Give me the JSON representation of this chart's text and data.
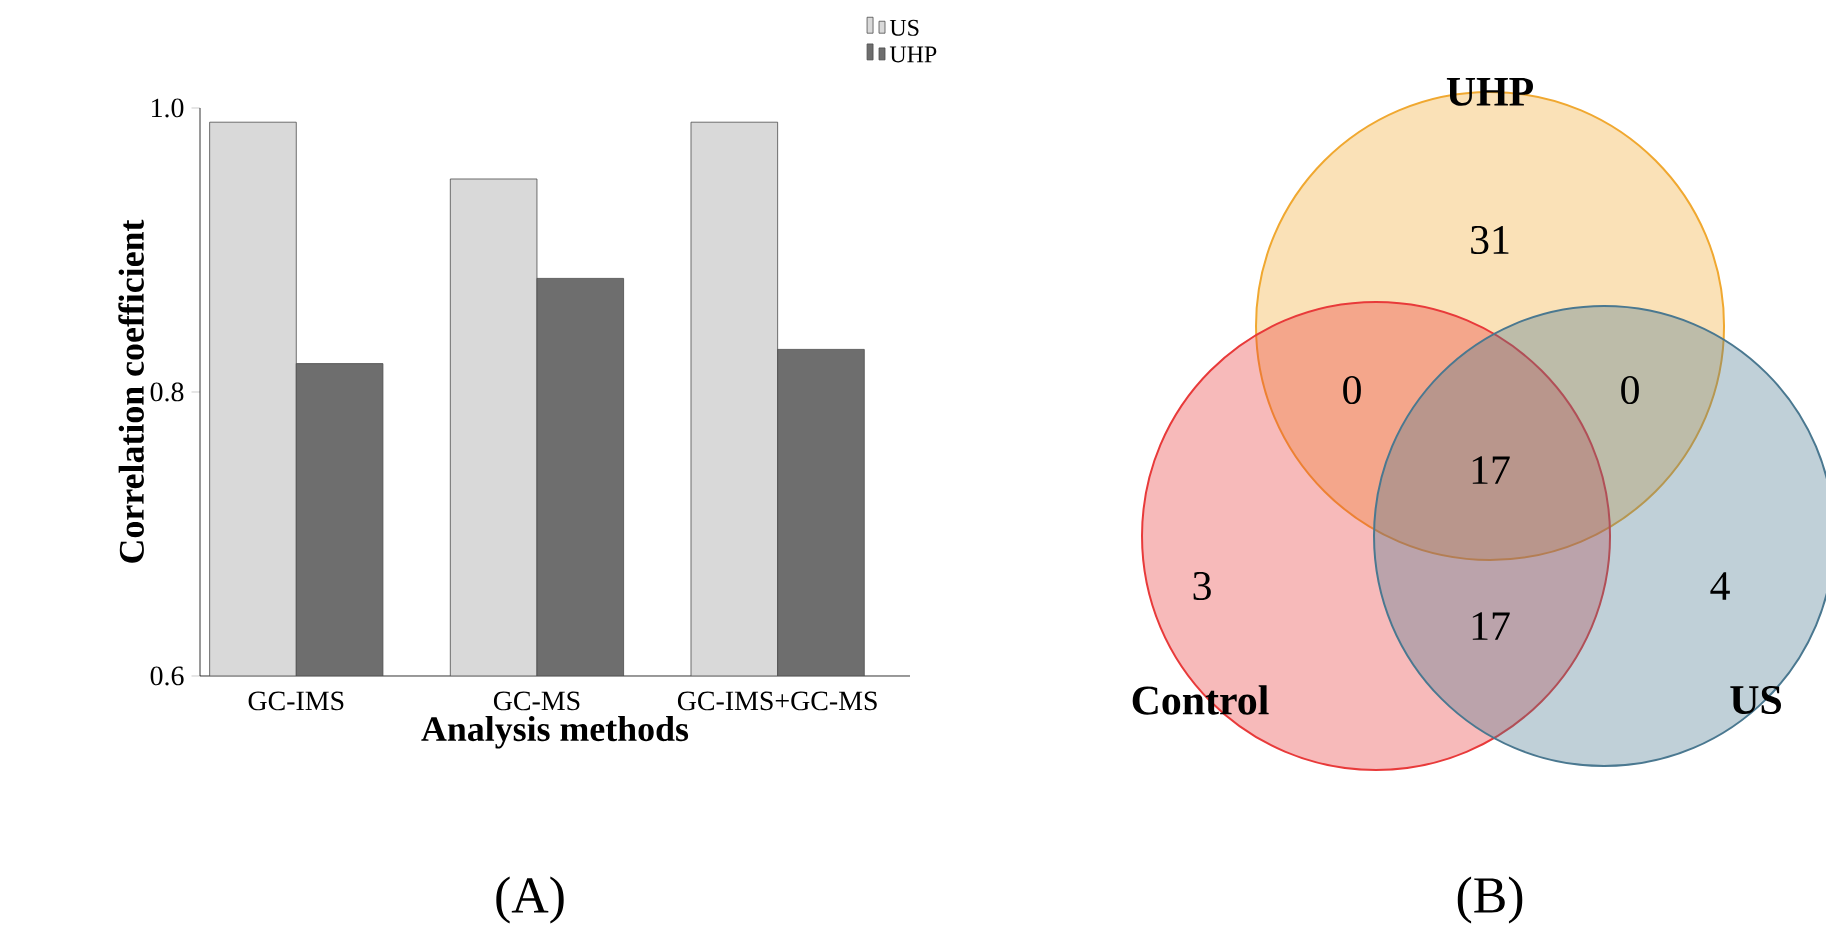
{
  "chart_data": [
    {
      "type": "bar",
      "xlabel": "Analysis methods",
      "ylabel": "Correlation coefficient",
      "categories": [
        "GC-IMS",
        "GC-MS",
        "GC-IMS+GC-MS"
      ],
      "series": [
        {
          "name": "US",
          "color": "#d9d9d9",
          "values": [
            0.99,
            0.95,
            0.99
          ]
        },
        {
          "name": "UHP",
          "color": "#6e6e6e",
          "values": [
            0.82,
            0.88,
            0.83
          ]
        }
      ],
      "ylim": [
        0.6,
        1.0
      ],
      "yticks": [
        0.6,
        0.8,
        {
          "value": 1.0,
          "label": "1.0"
        }
      ],
      "legend": "top right",
      "annotations": [
        "(A)"
      ]
    },
    {
      "type": "other",
      "annotations": [
        "UHP",
        "Control",
        "US",
        "31",
        "0",
        "0",
        "17",
        "3",
        "17",
        "4",
        "(B)"
      ]
    }
  ]
}
